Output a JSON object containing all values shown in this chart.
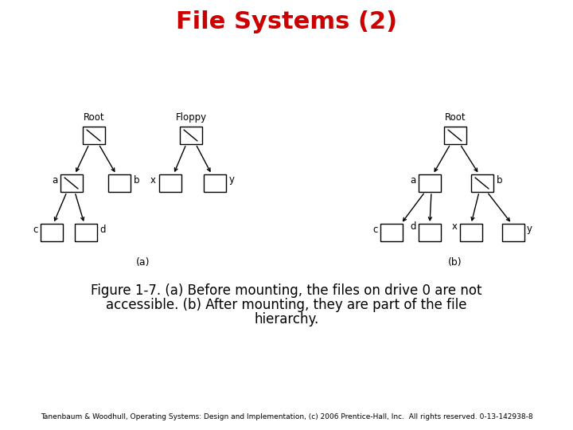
{
  "title": "File Systems (2)",
  "title_color": "#cc0000",
  "title_fontsize": 22,
  "caption_line1": "Figure 1-7. (a) Before mounting, the files on drive 0 are not",
  "caption_line2": "accessible. (b) After mounting, they are part of the file",
  "caption_line3": "hierarchy.",
  "caption_fontsize": 12,
  "footer": "Tanenbaum & Woodhull, Operating Systems: Design and Implementation, (c) 2006 Prentice-Hall, Inc.  All rights reserved. 0-13-142938-8",
  "footer_fontsize": 6.5,
  "bg_color": "#ffffff",
  "box_edge_color": "#000000",
  "line_color": "#000000",
  "label_a": "(a)",
  "label_b": "(b)"
}
